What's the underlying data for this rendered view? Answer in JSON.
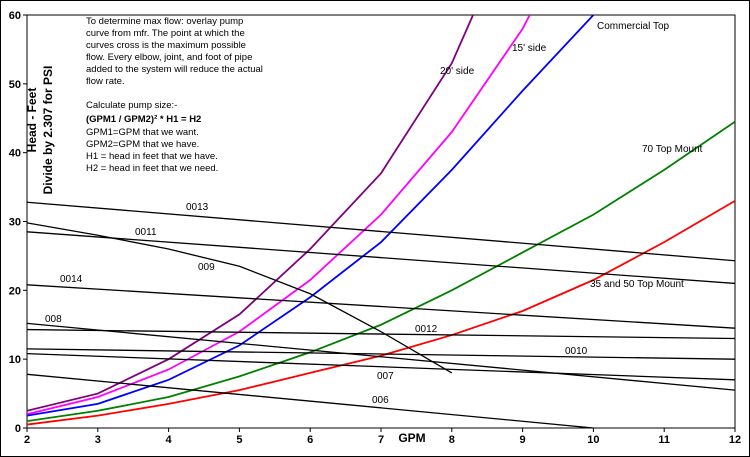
{
  "chart_data": {
    "type": "line",
    "xlabel": "GPM",
    "ylabel": "Head - Feet",
    "ylabel2": "Divide by 2.307 for PSI",
    "notes": [
      "To determine max flow: overlay pump",
      "curve from mfr. The point at which the",
      "curves cross is the maximum possible",
      "flow. Every elbow, joint, and foot of pipe",
      "added to the system will reduce the actual",
      "flow rate.",
      "Calculate pump size:-",
      "(GPM1 / GPM2)²  * H1 = H2",
      "GPM1=GPM that we want.",
      "GPM2=GPM that we have.",
      "H1 = head in feet that we have.",
      "H2 = head in feet that we need."
    ],
    "xlim": [
      2,
      12
    ],
    "xticks": [
      2,
      3,
      4,
      5,
      6,
      7,
      8,
      9,
      10,
      11,
      12
    ],
    "ylim": [
      0,
      60
    ],
    "yticks": [
      0,
      10,
      20,
      30,
      40,
      50,
      60
    ],
    "grid": false,
    "series": [
      {
        "name": "20' side",
        "color": "#800080",
        "x": [
          2,
          3,
          4,
          5,
          6,
          7,
          8,
          8.3
        ],
        "values": [
          2.5,
          5,
          10,
          16.5,
          26,
          37,
          53,
          60
        ]
      },
      {
        "name": "15' side",
        "color": "#ff00ff",
        "x": [
          2,
          3,
          4,
          5,
          6,
          7,
          8,
          9,
          9.1
        ],
        "values": [
          2,
          4.5,
          8.5,
          14,
          21.5,
          31,
          43,
          58,
          60
        ]
      },
      {
        "name": "Commercial Top",
        "color": "#0000ff",
        "x": [
          2,
          3,
          4,
          5,
          6,
          7,
          8,
          9,
          10
        ],
        "values": [
          1.8,
          3.5,
          7,
          12,
          19,
          27,
          37.5,
          49,
          60
        ]
      },
      {
        "name": "70 Top Mount",
        "color": "#008000",
        "x": [
          2,
          3,
          4,
          5,
          6,
          7,
          8,
          9,
          10,
          11,
          12
        ],
        "values": [
          1,
          2.5,
          4.5,
          7.5,
          11,
          15,
          20,
          25.5,
          31,
          37.5,
          44.5
        ]
      },
      {
        "name": "35 and 50 Top Mount",
        "color": "#ff0000",
        "x": [
          2,
          3,
          4,
          5,
          6,
          7,
          8,
          9,
          10,
          11,
          12
        ],
        "values": [
          0.5,
          1.8,
          3.5,
          5.5,
          8,
          10.5,
          13.5,
          17,
          21.5,
          27,
          33
        ]
      },
      {
        "name": "0013",
        "color": "#000000",
        "x": [
          2,
          12
        ],
        "values": [
          32.8,
          24.3
        ]
      },
      {
        "name": "0011",
        "color": "#000000",
        "x": [
          2,
          12
        ],
        "values": [
          28.5,
          21
        ]
      },
      {
        "name": "009",
        "color": "#000000",
        "x": [
          2,
          3,
          4,
          5,
          6,
          7,
          8
        ],
        "values": [
          29.8,
          28,
          26,
          23.5,
          19.5,
          14,
          8
        ]
      },
      {
        "name": "0014",
        "color": "#000000",
        "x": [
          2,
          12
        ],
        "values": [
          20.8,
          14.5
        ]
      },
      {
        "name": "008",
        "color": "#000000",
        "x": [
          2,
          12
        ],
        "values": [
          15.2,
          5.5
        ]
      },
      {
        "name": "0012",
        "color": "#000000",
        "x": [
          2,
          12
        ],
        "values": [
          14.3,
          13
        ]
      },
      {
        "name": "0010",
        "color": "#000000",
        "x": [
          2,
          12
        ],
        "values": [
          11.5,
          10
        ]
      },
      {
        "name": "007",
        "color": "#000000",
        "x": [
          2,
          12
        ],
        "values": [
          10.8,
          7
        ]
      },
      {
        "name": "006",
        "color": "#000000",
        "x": [
          2,
          10
        ],
        "values": [
          7.8,
          0
        ]
      }
    ]
  }
}
